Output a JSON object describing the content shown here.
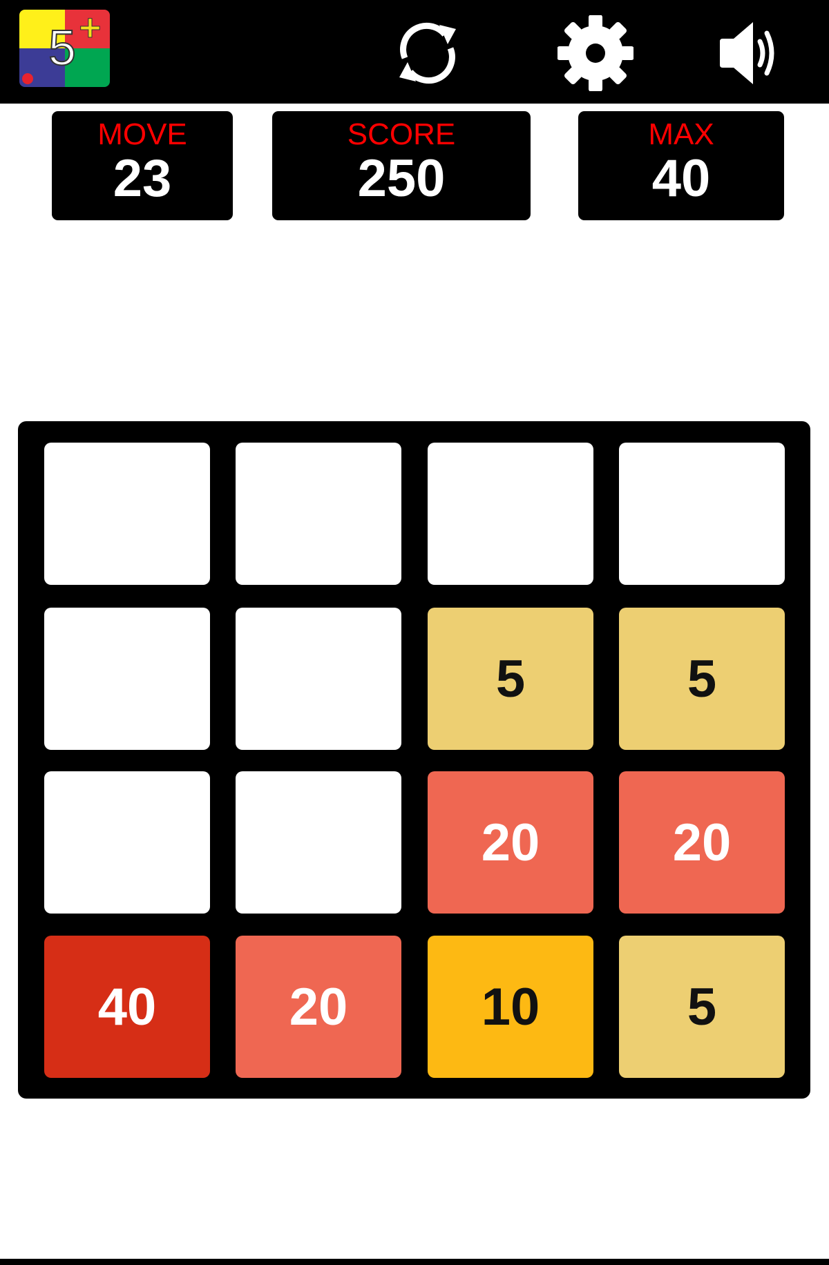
{
  "header": {
    "logo": {
      "text": "5",
      "superscript": "+",
      "colors": [
        "#FFF01A",
        "#E8323A",
        "#3C3C96",
        "#00A651"
      ]
    },
    "buttons": [
      {
        "name": "restart",
        "icon": "refresh-icon"
      },
      {
        "name": "settings",
        "icon": "gear-icon"
      },
      {
        "name": "sound",
        "icon": "speaker-icon"
      }
    ]
  },
  "stats": {
    "move": {
      "label": "MOVE",
      "value": "23"
    },
    "score": {
      "label": "SCORE",
      "value": "250"
    },
    "max": {
      "label": "MAX",
      "value": "40"
    }
  },
  "colors": {
    "label": "#FF0000",
    "empty": "#FFFFFF",
    "5": "#EDCF72",
    "10": "#FDB913",
    "20": "#EF6752",
    "40": "#D62E16"
  },
  "board": {
    "rows": [
      [
        "",
        "",
        "",
        ""
      ],
      [
        "",
        "",
        "5",
        "5"
      ],
      [
        "",
        "",
        "20",
        "20"
      ],
      [
        "40",
        "20",
        "10",
        "5"
      ]
    ]
  }
}
